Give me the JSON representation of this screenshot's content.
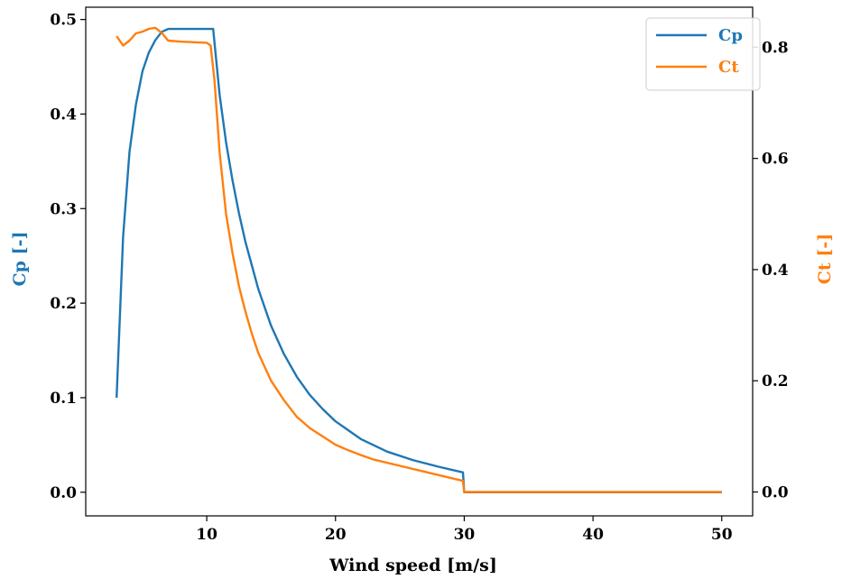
{
  "chart_data": {
    "type": "line",
    "xlabel": "Wind speed [m/s]",
    "ylabel_left": "Cp [-]",
    "ylabel_right": "Ct [-]",
    "xlim": [
      0.6,
      52.4
    ],
    "ylim_left": [
      -0.025,
      0.513
    ],
    "ylim_right": [
      -0.043,
      0.872
    ],
    "x_ticks": [
      10,
      20,
      30,
      40,
      50
    ],
    "y_ticks_left": [
      0.0,
      0.1,
      0.2,
      0.3,
      0.4,
      0.5
    ],
    "y_ticks_right": [
      0.0,
      0.2,
      0.4,
      0.6,
      0.8
    ],
    "legend_position": "top-right",
    "grid": false,
    "series": [
      {
        "name": "Cp",
        "axis": "left",
        "color": "#1f77b4",
        "x": [
          3,
          3.5,
          4,
          4.5,
          5,
          5.5,
          6,
          6.5,
          7,
          8,
          9,
          10,
          10.5,
          11,
          11.5,
          12,
          12.5,
          13,
          14,
          15,
          16,
          17,
          18,
          19,
          20,
          22,
          24,
          26,
          28,
          29.9,
          30,
          35,
          40,
          45,
          50
        ],
        "y": [
          0.1,
          0.27,
          0.36,
          0.41,
          0.445,
          0.465,
          0.478,
          0.487,
          0.49,
          0.49,
          0.49,
          0.49,
          0.49,
          0.42,
          0.37,
          0.33,
          0.295,
          0.265,
          0.215,
          0.176,
          0.146,
          0.122,
          0.103,
          0.088,
          0.075,
          0.056,
          0.043,
          0.034,
          0.027,
          0.021,
          0.0,
          0.0,
          0.0,
          0.0,
          0.0
        ]
      },
      {
        "name": "Ct",
        "axis": "right",
        "color": "#ff7f0e",
        "x": [
          3,
          3.5,
          4,
          4.5,
          5,
          5.5,
          6,
          6.5,
          7,
          8,
          9,
          10,
          10.3,
          10.6,
          11,
          11.5,
          12,
          12.5,
          13,
          13.5,
          14,
          15,
          16,
          17,
          17.5,
          18,
          19,
          20,
          21,
          22,
          23,
          25,
          27,
          29.9,
          30,
          35,
          40,
          45,
          50
        ],
        "y": [
          0.82,
          0.803,
          0.812,
          0.825,
          0.828,
          0.833,
          0.835,
          0.826,
          0.812,
          0.81,
          0.809,
          0.808,
          0.803,
          0.74,
          0.61,
          0.5,
          0.43,
          0.37,
          0.325,
          0.285,
          0.25,
          0.2,
          0.165,
          0.135,
          0.125,
          0.115,
          0.1,
          0.085,
          0.075,
          0.066,
          0.058,
          0.047,
          0.036,
          0.02,
          0.0,
          0.0,
          0.0,
          0.0,
          0.0
        ]
      }
    ]
  }
}
